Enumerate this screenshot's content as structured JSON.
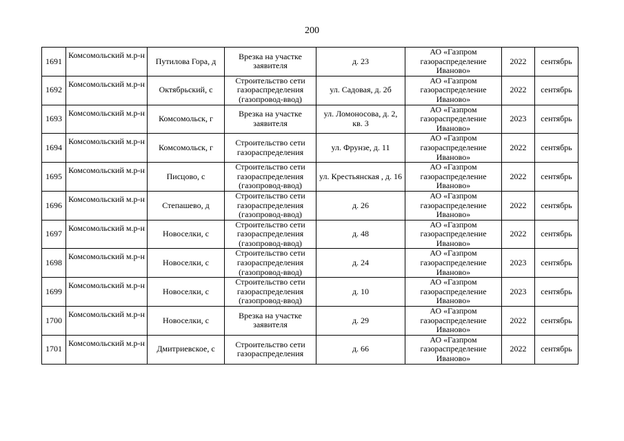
{
  "page_number": "200",
  "rows": [
    {
      "num": "1691",
      "district": "Комсомольский м.р-н",
      "locality": "Путилова Гора, д",
      "work": "Врезка на участке заявителя",
      "address": "д. 23",
      "org": "АО «Газпром газораспределение Иваново»",
      "year": "2022",
      "month": "сентябрь"
    },
    {
      "num": "1692",
      "district": "Комсомольский м.р-н",
      "locality": "Октябрьский, с",
      "work": "Строительство сети газораспределения (газопровод-ввод)",
      "address": "ул. Садовая, д. 2б",
      "org": "АО «Газпром газораспределение Иваново»",
      "year": "2022",
      "month": "сентябрь"
    },
    {
      "num": "1693",
      "district": "Комсомольский м.р-н",
      "locality": "Комсомольск, г",
      "work": "Врезка на участке заявителя",
      "address": "ул. Ломоносова, д. 2, кв. 3",
      "org": "АО «Газпром газораспределение Иваново»",
      "year": "2023",
      "month": "сентябрь"
    },
    {
      "num": "1694",
      "district": "Комсомольский м.р-н",
      "locality": "Комсомольск, г",
      "work": "Строительство сети газораспределения",
      "address": "ул. Фрунзе, д. 11",
      "org": "АО «Газпром газораспределение Иваново»",
      "year": "2022",
      "month": "сентябрь"
    },
    {
      "num": "1695",
      "district": "Комсомольский м.р-н",
      "locality": "Писцово, с",
      "work": "Строительство сети газораспределения (газопровод-ввод)",
      "address": "ул. Крестьянская , д. 16",
      "org": "АО «Газпром газораспределение Иваново»",
      "year": "2022",
      "month": "сентябрь"
    },
    {
      "num": "1696",
      "district": "Комсомольский м.р-н",
      "locality": "Степашево, д",
      "work": "Строительство сети газораспределения (газопровод-ввод)",
      "address": "д. 26",
      "org": "АО «Газпром газораспределение Иваново»",
      "year": "2022",
      "month": "сентябрь"
    },
    {
      "num": "1697",
      "district": "Комсомольский м.р-н",
      "locality": "Новоселки, с",
      "work": "Строительство сети газораспределения (газопровод-ввод)",
      "address": "д. 48",
      "org": "АО «Газпром газораспределение Иваново»",
      "year": "2022",
      "month": "сентябрь"
    },
    {
      "num": "1698",
      "district": "Комсомольский м.р-н",
      "locality": "Новоселки, с",
      "work": "Строительство сети газораспределения (газопровод-ввод)",
      "address": "д. 24",
      "org": "АО «Газпром газораспределение Иваново»",
      "year": "2023",
      "month": "сентябрь"
    },
    {
      "num": "1699",
      "district": "Комсомольский м.р-н",
      "locality": "Новоселки, с",
      "work": "Строительство сети газораспределения (газопровод-ввод)",
      "address": "д. 10",
      "org": "АО «Газпром газораспределение Иваново»",
      "year": "2023",
      "month": "сентябрь"
    },
    {
      "num": "1700",
      "district": "Комсомольский м.р-н",
      "locality": "Новоселки, с",
      "work": "Врезка на участке заявителя",
      "address": "д. 29",
      "org": "АО «Газпром газораспределение Иваново»",
      "year": "2022",
      "month": "сентябрь"
    },
    {
      "num": "1701",
      "district": "Комсомольский м.р-н",
      "locality": "Дмитриевское, с",
      "work": "Строительство сети газораспределения",
      "address": "д. 66",
      "org": "АО «Газпром газораспределение Иваново»",
      "year": "2022",
      "month": "сентябрь"
    }
  ]
}
